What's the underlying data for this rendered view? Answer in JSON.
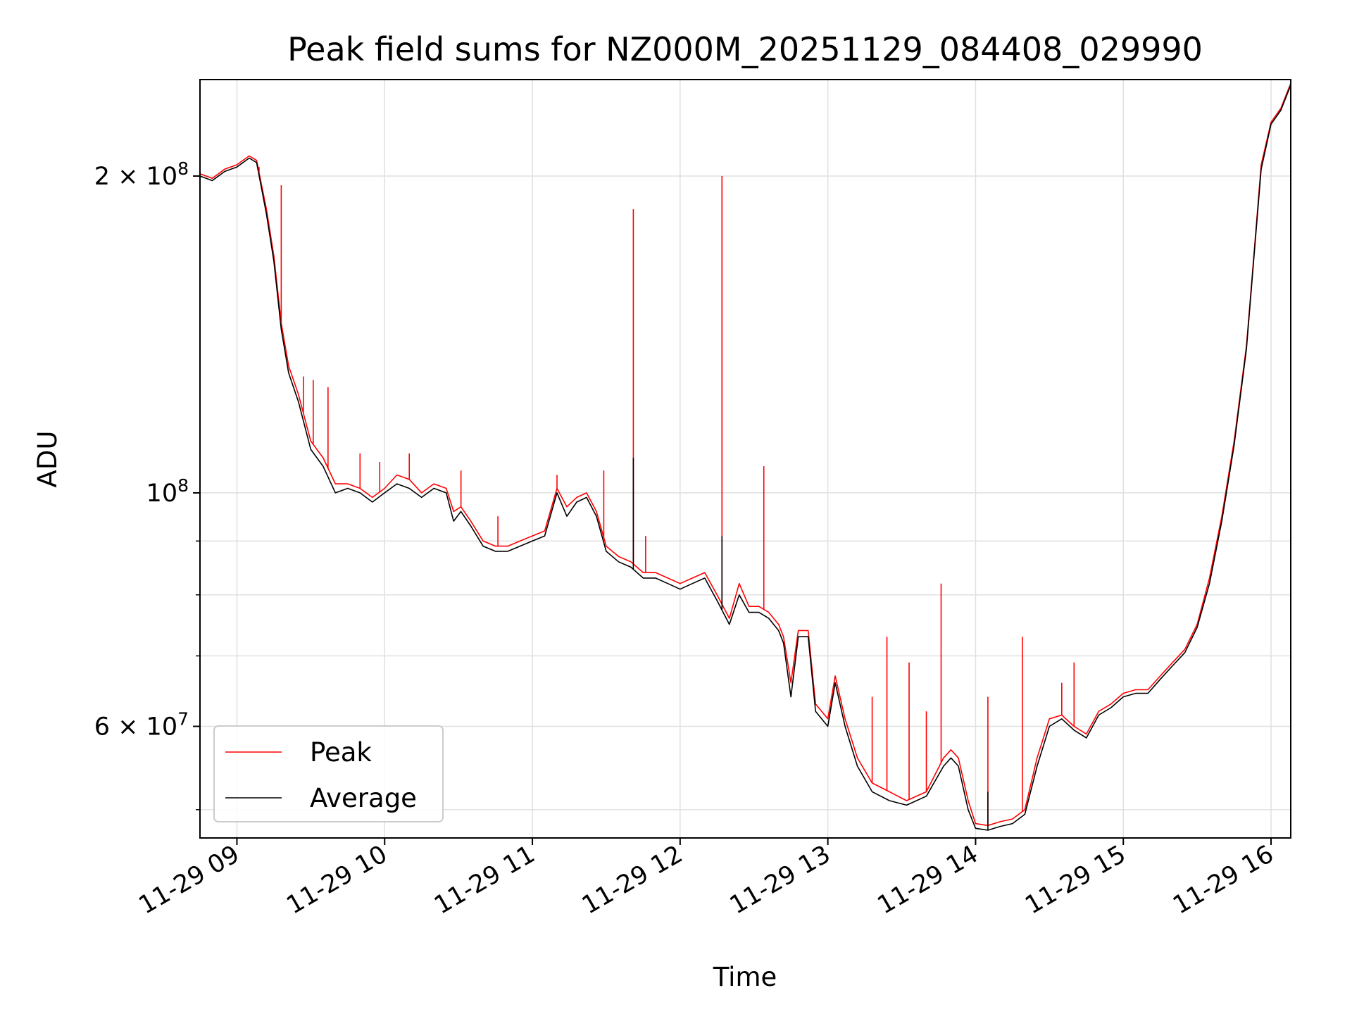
{
  "chart_data": {
    "type": "line",
    "title": "Peak field sums for NZ000M_20251129_084408_029990",
    "xlabel": "Time",
    "ylabel": "ADU",
    "x_ticks": [
      "11-29 09",
      "11-29 10",
      "11-29 11",
      "11-29 12",
      "11-29 13",
      "11-29 14",
      "11-29 15",
      "11-29 16"
    ],
    "y_scale": "log",
    "y_ticks": [
      {
        "value": 60000000,
        "mant": "6",
        "exp": "7"
      },
      {
        "value": 100000000,
        "mant": "",
        "exp": "8"
      },
      {
        "value": 200000000,
        "mant": "2",
        "exp": "8"
      }
    ],
    "xlim": [
      "2025-11-29 08:45",
      "2025-11-29 16:08"
    ],
    "ylim": [
      47000000,
      247000000
    ],
    "grid": true,
    "legend": {
      "position": "lower-left",
      "entries": [
        "Peak",
        "Average"
      ]
    },
    "colors": {
      "peak": "#ff0000",
      "average": "#000000",
      "grid": "#e0e0e0"
    },
    "series": [
      {
        "name": "Peak",
        "x": [
          "2025-11-29 08:45",
          "2025-11-29 08:50",
          "2025-11-29 08:55",
          "2025-11-29 09:00",
          "2025-11-29 09:05",
          "2025-11-29 09:08",
          "2025-11-29 09:12",
          "2025-11-29 09:15",
          "2025-11-29 09:18",
          "2025-11-29 09:21",
          "2025-11-29 09:25",
          "2025-11-29 09:30",
          "2025-11-29 09:35",
          "2025-11-29 09:40",
          "2025-11-29 09:45",
          "2025-11-29 09:50",
          "2025-11-29 09:55",
          "2025-11-29 10:00",
          "2025-11-29 10:05",
          "2025-11-29 10:10",
          "2025-11-29 10:15",
          "2025-11-29 10:20",
          "2025-11-29 10:25",
          "2025-11-29 10:28",
          "2025-11-29 10:31",
          "2025-11-29 10:35",
          "2025-11-29 10:40",
          "2025-11-29 10:45",
          "2025-11-29 10:50",
          "2025-11-29 10:55",
          "2025-11-29 11:00",
          "2025-11-29 11:05",
          "2025-11-29 11:10",
          "2025-11-29 11:14",
          "2025-11-29 11:18",
          "2025-11-29 11:22",
          "2025-11-29 11:26",
          "2025-11-29 11:30",
          "2025-11-29 11:35",
          "2025-11-29 11:40",
          "2025-11-29 11:45",
          "2025-11-29 11:50",
          "2025-11-29 11:55",
          "2025-11-29 12:00",
          "2025-11-29 12:05",
          "2025-11-29 12:10",
          "2025-11-29 12:15",
          "2025-11-29 12:20",
          "2025-11-29 12:24",
          "2025-11-29 12:28",
          "2025-11-29 12:32",
          "2025-11-29 12:36",
          "2025-11-29 12:40",
          "2025-11-29 12:42",
          "2025-11-29 12:45",
          "2025-11-29 12:48",
          "2025-11-29 12:52",
          "2025-11-29 12:55",
          "2025-11-29 13:00",
          "2025-11-29 13:03",
          "2025-11-29 13:07",
          "2025-11-29 13:12",
          "2025-11-29 13:18",
          "2025-11-29 13:25",
          "2025-11-29 13:32",
          "2025-11-29 13:40",
          "2025-11-29 13:47",
          "2025-11-29 13:50",
          "2025-11-29 13:53",
          "2025-11-29 13:57",
          "2025-11-29 14:00",
          "2025-11-29 14:05",
          "2025-11-29 14:10",
          "2025-11-29 14:15",
          "2025-11-29 14:20",
          "2025-11-29 14:25",
          "2025-11-29 14:30",
          "2025-11-29 14:35",
          "2025-11-29 14:40",
          "2025-11-29 14:45",
          "2025-11-29 14:50",
          "2025-11-29 14:55",
          "2025-11-29 15:00",
          "2025-11-29 15:05",
          "2025-11-29 15:10",
          "2025-11-29 15:15",
          "2025-11-29 15:20",
          "2025-11-29 15:25",
          "2025-11-29 15:30",
          "2025-11-29 15:35",
          "2025-11-29 15:40",
          "2025-11-29 15:45",
          "2025-11-29 15:50",
          "2025-11-29 15:53",
          "2025-11-29 15:56",
          "2025-11-29 16:00",
          "2025-11-29 16:04",
          "2025-11-29 16:08"
        ],
        "y": [
          201000000,
          199000000,
          203000000,
          205000000,
          209000000,
          207000000,
          186000000,
          168000000,
          145000000,
          132000000,
          124000000,
          112000000,
          108000000,
          102000000,
          102000000,
          101000000,
          99000000,
          101000000,
          104000000,
          103000000,
          100000000,
          102000000,
          101000000,
          96000000,
          97000000,
          94000000,
          90000000,
          89000000,
          89000000,
          90000000,
          91000000,
          92000000,
          101000000,
          97000000,
          99000000,
          100000000,
          96000000,
          89000000,
          87000000,
          86000000,
          84000000,
          84000000,
          83000000,
          82000000,
          83000000,
          84000000,
          80000000,
          76000000,
          82000000,
          78000000,
          78000000,
          77000000,
          75000000,
          73000000,
          66000000,
          74000000,
          74000000,
          63000000,
          61000000,
          67000000,
          61000000,
          56000000,
          53000000,
          52000000,
          51000000,
          52000000,
          56000000,
          57000000,
          56000000,
          51000000,
          48500000,
          48300000,
          48700000,
          49000000,
          50000000,
          56000000,
          61000000,
          61500000,
          60000000,
          59000000,
          62000000,
          63000000,
          64500000,
          65000000,
          65000000,
          67000000,
          69000000,
          71000000,
          75000000,
          83000000,
          95000000,
          112000000,
          138000000,
          168000000,
          205000000,
          225000000,
          232000000,
          245000000
        ]
      },
      {
        "name": "Average",
        "x": [
          "2025-11-29 08:45",
          "2025-11-29 08:50",
          "2025-11-29 08:55",
          "2025-11-29 09:00",
          "2025-11-29 09:05",
          "2025-11-29 09:08",
          "2025-11-29 09:12",
          "2025-11-29 09:15",
          "2025-11-29 09:18",
          "2025-11-29 09:21",
          "2025-11-29 09:25",
          "2025-11-29 09:30",
          "2025-11-29 09:35",
          "2025-11-29 09:40",
          "2025-11-29 09:45",
          "2025-11-29 09:50",
          "2025-11-29 09:55",
          "2025-11-29 10:00",
          "2025-11-29 10:05",
          "2025-11-29 10:10",
          "2025-11-29 10:15",
          "2025-11-29 10:20",
          "2025-11-29 10:25",
          "2025-11-29 10:28",
          "2025-11-29 10:31",
          "2025-11-29 10:35",
          "2025-11-29 10:40",
          "2025-11-29 10:45",
          "2025-11-29 10:50",
          "2025-11-29 10:55",
          "2025-11-29 11:00",
          "2025-11-29 11:05",
          "2025-11-29 11:10",
          "2025-11-29 11:14",
          "2025-11-29 11:18",
          "2025-11-29 11:22",
          "2025-11-29 11:26",
          "2025-11-29 11:30",
          "2025-11-29 11:35",
          "2025-11-29 11:40",
          "2025-11-29 11:45",
          "2025-11-29 11:50",
          "2025-11-29 11:55",
          "2025-11-29 12:00",
          "2025-11-29 12:05",
          "2025-11-29 12:10",
          "2025-11-29 12:15",
          "2025-11-29 12:20",
          "2025-11-29 12:24",
          "2025-11-29 12:28",
          "2025-11-29 12:32",
          "2025-11-29 12:36",
          "2025-11-29 12:40",
          "2025-11-29 12:42",
          "2025-11-29 12:45",
          "2025-11-29 12:48",
          "2025-11-29 12:52",
          "2025-11-29 12:55",
          "2025-11-29 13:00",
          "2025-11-29 13:03",
          "2025-11-29 13:07",
          "2025-11-29 13:12",
          "2025-11-29 13:18",
          "2025-11-29 13:25",
          "2025-11-29 13:32",
          "2025-11-29 13:40",
          "2025-11-29 13:47",
          "2025-11-29 13:50",
          "2025-11-29 13:53",
          "2025-11-29 13:57",
          "2025-11-29 14:00",
          "2025-11-29 14:05",
          "2025-11-29 14:10",
          "2025-11-29 14:15",
          "2025-11-29 14:20",
          "2025-11-29 14:25",
          "2025-11-29 14:30",
          "2025-11-29 14:35",
          "2025-11-29 14:40",
          "2025-11-29 14:45",
          "2025-11-29 14:50",
          "2025-11-29 14:55",
          "2025-11-29 15:00",
          "2025-11-29 15:05",
          "2025-11-29 15:10",
          "2025-11-29 15:15",
          "2025-11-29 15:20",
          "2025-11-29 15:25",
          "2025-11-29 15:30",
          "2025-11-29 15:35",
          "2025-11-29 15:40",
          "2025-11-29 15:45",
          "2025-11-29 15:50",
          "2025-11-29 15:53",
          "2025-11-29 15:56",
          "2025-11-29 16:00",
          "2025-11-29 16:04",
          "2025-11-29 16:08"
        ],
        "y": [
          200000000,
          198000000,
          202000000,
          204000000,
          208000000,
          206000000,
          184000000,
          166000000,
          143000000,
          130000000,
          122000000,
          110000000,
          106000000,
          100000000,
          101000000,
          100000000,
          98000000,
          100000000,
          102000000,
          101000000,
          99000000,
          101000000,
          100000000,
          94000000,
          96000000,
          93000000,
          89000000,
          88000000,
          88000000,
          89000000,
          90000000,
          91000000,
          100000000,
          95000000,
          98000000,
          99000000,
          95000000,
          88000000,
          86000000,
          85000000,
          83000000,
          83000000,
          82000000,
          81000000,
          82000000,
          83000000,
          79000000,
          75000000,
          80000000,
          77000000,
          77000000,
          76000000,
          74000000,
          72000000,
          64000000,
          73000000,
          73000000,
          62000000,
          60000000,
          66000000,
          60000000,
          55000000,
          52000000,
          51000000,
          50500000,
          51500000,
          55000000,
          56000000,
          55000000,
          50000000,
          48000000,
          47800000,
          48200000,
          48500000,
          49500000,
          55000000,
          60000000,
          61000000,
          59500000,
          58500000,
          61500000,
          62500000,
          64000000,
          64500000,
          64500000,
          66500000,
          68500000,
          70500000,
          74500000,
          82000000,
          94000000,
          111000000,
          137000000,
          167000000,
          203000000,
          224000000,
          231000000,
          244000000
        ]
      }
    ],
    "peak_spikes": [
      {
        "x": "2025-11-29 09:09",
        "y": 204000000
      },
      {
        "x": "2025-11-29 09:18",
        "y": 196000000
      },
      {
        "x": "2025-11-29 09:22",
        "y": 130000000
      },
      {
        "x": "2025-11-29 09:27",
        "y": 129000000
      },
      {
        "x": "2025-11-29 09:31",
        "y": 128000000
      },
      {
        "x": "2025-11-29 09:37",
        "y": 126000000
      },
      {
        "x": "2025-11-29 09:50",
        "y": 109000000
      },
      {
        "x": "2025-11-29 09:58",
        "y": 107000000
      },
      {
        "x": "2025-11-29 10:10",
        "y": 109000000
      },
      {
        "x": "2025-11-29 10:31",
        "y": 105000000
      },
      {
        "x": "2025-11-29 10:46",
        "y": 95000000
      },
      {
        "x": "2025-11-29 11:10",
        "y": 104000000
      },
      {
        "x": "2025-11-29 11:29",
        "y": 105000000
      },
      {
        "x": "2025-11-29 11:41",
        "y": 186000000
      },
      {
        "x": "2025-11-29 11:46",
        "y": 91000000
      },
      {
        "x": "2025-11-29 12:17",
        "y": 200000000
      },
      {
        "x": "2025-11-29 12:34",
        "y": 106000000
      },
      {
        "x": "2025-11-29 13:18",
        "y": 64000000
      },
      {
        "x": "2025-11-29 13:24",
        "y": 73000000
      },
      {
        "x": "2025-11-29 13:33",
        "y": 69000000
      },
      {
        "x": "2025-11-29 13:40",
        "y": 62000000
      },
      {
        "x": "2025-11-29 13:46",
        "y": 82000000
      },
      {
        "x": "2025-11-29 14:05",
        "y": 64000000
      },
      {
        "x": "2025-11-29 14:19",
        "y": 73000000
      },
      {
        "x": "2025-11-29 14:35",
        "y": 66000000
      },
      {
        "x": "2025-11-29 14:40",
        "y": 69000000
      }
    ],
    "average_spikes": [
      {
        "x": "2025-11-29 11:41",
        "y": 108000000
      },
      {
        "x": "2025-11-29 12:17",
        "y": 91000000
      },
      {
        "x": "2025-11-29 14:05",
        "y": 52000000
      }
    ]
  }
}
